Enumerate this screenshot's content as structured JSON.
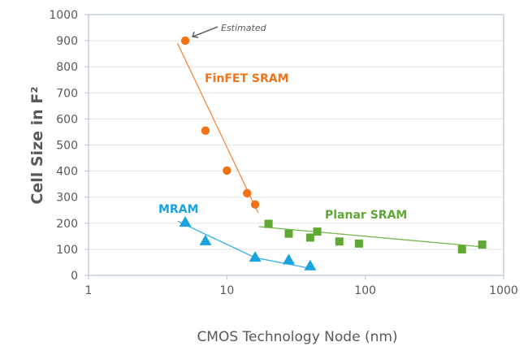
{
  "chart_data": {
    "type": "scatter",
    "title": "",
    "xlabel": "CMOS Technology Node (nm)",
    "ylabel": "Cell Size in F²",
    "xscale": "log",
    "xlim": [
      1,
      1000
    ],
    "ylim": [
      0,
      1000
    ],
    "xticks": [
      1,
      10,
      100,
      1000
    ],
    "xtick_labels": [
      "1",
      "10",
      "100",
      "1000"
    ],
    "yticks": [
      0,
      100,
      200,
      300,
      400,
      500,
      600,
      700,
      800,
      900,
      1000
    ],
    "ytick_labels": [
      "0",
      "100",
      "200",
      "300",
      "400",
      "500",
      "600",
      "700",
      "800",
      "900",
      "1000"
    ],
    "grid": "horizontal",
    "legend": "none (inline labels)",
    "series": [
      {
        "name": "FinFET SRAM",
        "color": "#f47216",
        "marker": "circle",
        "x": [
          5,
          7,
          10,
          14,
          16
        ],
        "y": [
          900,
          555,
          402,
          315,
          272
        ],
        "trendline": {
          "x": [
            4.4,
            16.8
          ],
          "y": [
            890,
            240
          ]
        }
      },
      {
        "name": "MRAM",
        "color": "#1aa3e0",
        "marker": "triangle",
        "x": [
          5,
          7,
          16,
          28,
          40
        ],
        "y": [
          202,
          131,
          68,
          58,
          35
        ],
        "trendline": {
          "x": [
            4.4,
            16,
            39
          ],
          "y": [
            208,
            68,
            28
          ]
        }
      },
      {
        "name": "Planar SRAM",
        "color": "#5fa834",
        "marker": "square",
        "x": [
          20,
          28,
          40,
          45,
          65,
          90,
          500,
          700
        ],
        "y": [
          198,
          160,
          145,
          168,
          130,
          122,
          100,
          118
        ],
        "trendline": {
          "x": [
            17,
            720
          ],
          "y": [
            187,
            109
          ]
        }
      }
    ],
    "annotations": [
      {
        "text": "Estimated",
        "target_series": "FinFET SRAM",
        "target_x": 5,
        "target_y": 900
      }
    ]
  },
  "colors": {
    "axis": "#b4c3d6",
    "grid": "#e3e3e3",
    "text": "#595959",
    "arrow": "#666666"
  }
}
